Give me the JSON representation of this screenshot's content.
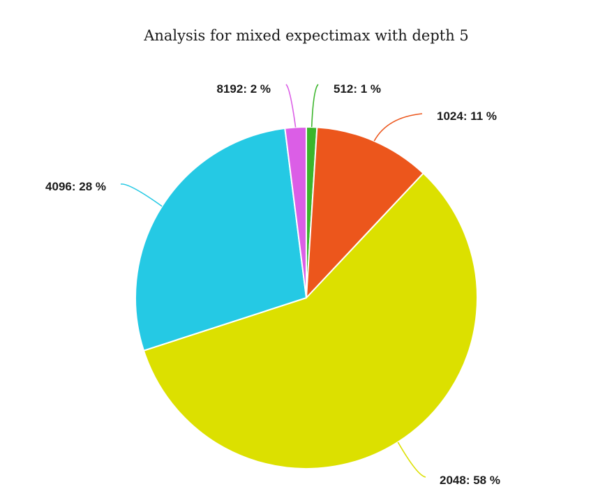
{
  "chart_data": {
    "type": "pie",
    "title": "Analysis for mixed expectimax with depth 5",
    "label_format": "{name}: {value} %",
    "slices": [
      {
        "name": "512",
        "value": 1,
        "color": "#3bb52b"
      },
      {
        "name": "1024",
        "value": 11,
        "color": "#ec561c"
      },
      {
        "name": "2048",
        "value": 58,
        "color": "#dce000"
      },
      {
        "name": "4096",
        "value": 28,
        "color": "#25c9e4"
      },
      {
        "name": "8192",
        "value": 2,
        "color": "#db5ee6"
      }
    ]
  }
}
